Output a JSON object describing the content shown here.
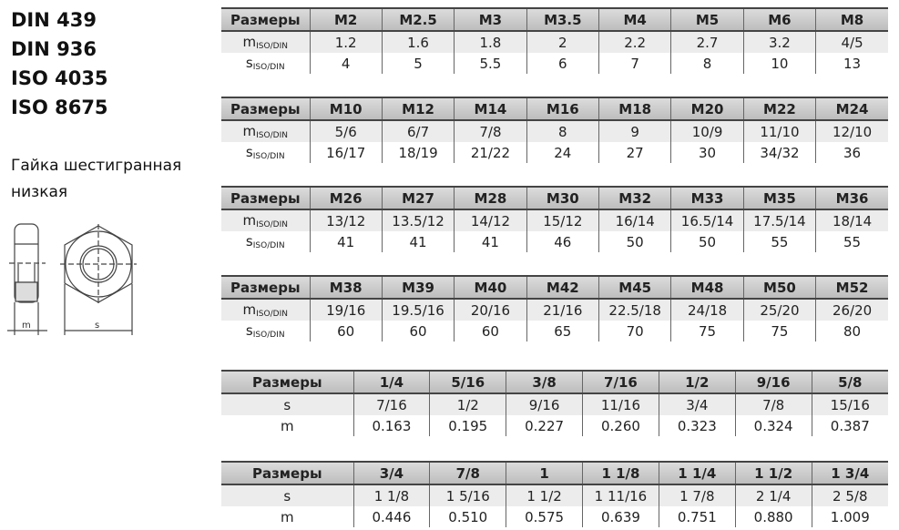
{
  "standards": [
    "DIN 439",
    "DIN 936",
    "ISO 4035",
    "ISO 8675"
  ],
  "description": "Гайка шестигранная низкая",
  "drawing": {
    "label_m": "m",
    "label_s": "s"
  },
  "metric_tables": [
    {
      "header": "Размеры",
      "sizes": [
        "M2",
        "M2.5",
        "M3",
        "M3.5",
        "M4",
        "M5",
        "M6",
        "M8"
      ],
      "m": [
        "1.2",
        "1.6",
        "1.8",
        "2",
        "2.2",
        "2.7",
        "3.2",
        "4/5"
      ],
      "s": [
        "4",
        "5",
        "5.5",
        "6",
        "7",
        "8",
        "10",
        "13"
      ]
    },
    {
      "header": "Размеры",
      "sizes": [
        "M10",
        "M12",
        "M14",
        "M16",
        "M18",
        "M20",
        "M22",
        "M24"
      ],
      "m": [
        "5/6",
        "6/7",
        "7/8",
        "8",
        "9",
        "10/9",
        "11/10",
        "12/10"
      ],
      "s": [
        "16/17",
        "18/19",
        "21/22",
        "24",
        "27",
        "30",
        "34/32",
        "36"
      ]
    },
    {
      "header": "Размеры",
      "sizes": [
        "M26",
        "M27",
        "M28",
        "M30",
        "M32",
        "M33",
        "M35",
        "M36"
      ],
      "m": [
        "13/12",
        "13.5/12",
        "14/12",
        "15/12",
        "16/14",
        "16.5/14",
        "17.5/14",
        "18/14"
      ],
      "s": [
        "41",
        "41",
        "41",
        "46",
        "50",
        "50",
        "55",
        "55"
      ]
    },
    {
      "header": "Размеры",
      "sizes": [
        "M38",
        "M39",
        "M40",
        "M42",
        "M45",
        "M48",
        "M50",
        "M52"
      ],
      "m": [
        "19/16",
        "19.5/16",
        "20/16",
        "21/16",
        "22.5/18",
        "24/18",
        "25/20",
        "26/20"
      ],
      "s": [
        "60",
        "60",
        "60",
        "65",
        "70",
        "75",
        "75",
        "80"
      ]
    }
  ],
  "metric_row_labels": {
    "m": "m",
    "s": "s",
    "sub": "ISO/DIN"
  },
  "inch_tables": [
    {
      "header": "Размеры",
      "sizes": [
        "1/4",
        "5/16",
        "3/8",
        "7/16",
        "1/2",
        "9/16",
        "5/8"
      ],
      "s": [
        "7/16",
        "1/2",
        "9/16",
        "11/16",
        "3/4",
        "7/8",
        "15/16"
      ],
      "m": [
        "0.163",
        "0.195",
        "0.227",
        "0.260",
        "0.323",
        "0.324",
        "0.387"
      ]
    },
    {
      "header": "Размеры",
      "sizes": [
        "3/4",
        "7/8",
        "1",
        "1 1/8",
        "1 1/4",
        "1 1/2",
        "1 3/4"
      ],
      "s": [
        "1 1/8",
        "1 5/16",
        "1 1/2",
        "1 11/16",
        "1 7/8",
        "2 1/4",
        "2 5/8"
      ],
      "m": [
        "0.446",
        "0.510",
        "0.575",
        "0.639",
        "0.751",
        "0.880",
        "1.009"
      ]
    }
  ],
  "inch_row_labels": {
    "s": "s",
    "m": "m"
  }
}
